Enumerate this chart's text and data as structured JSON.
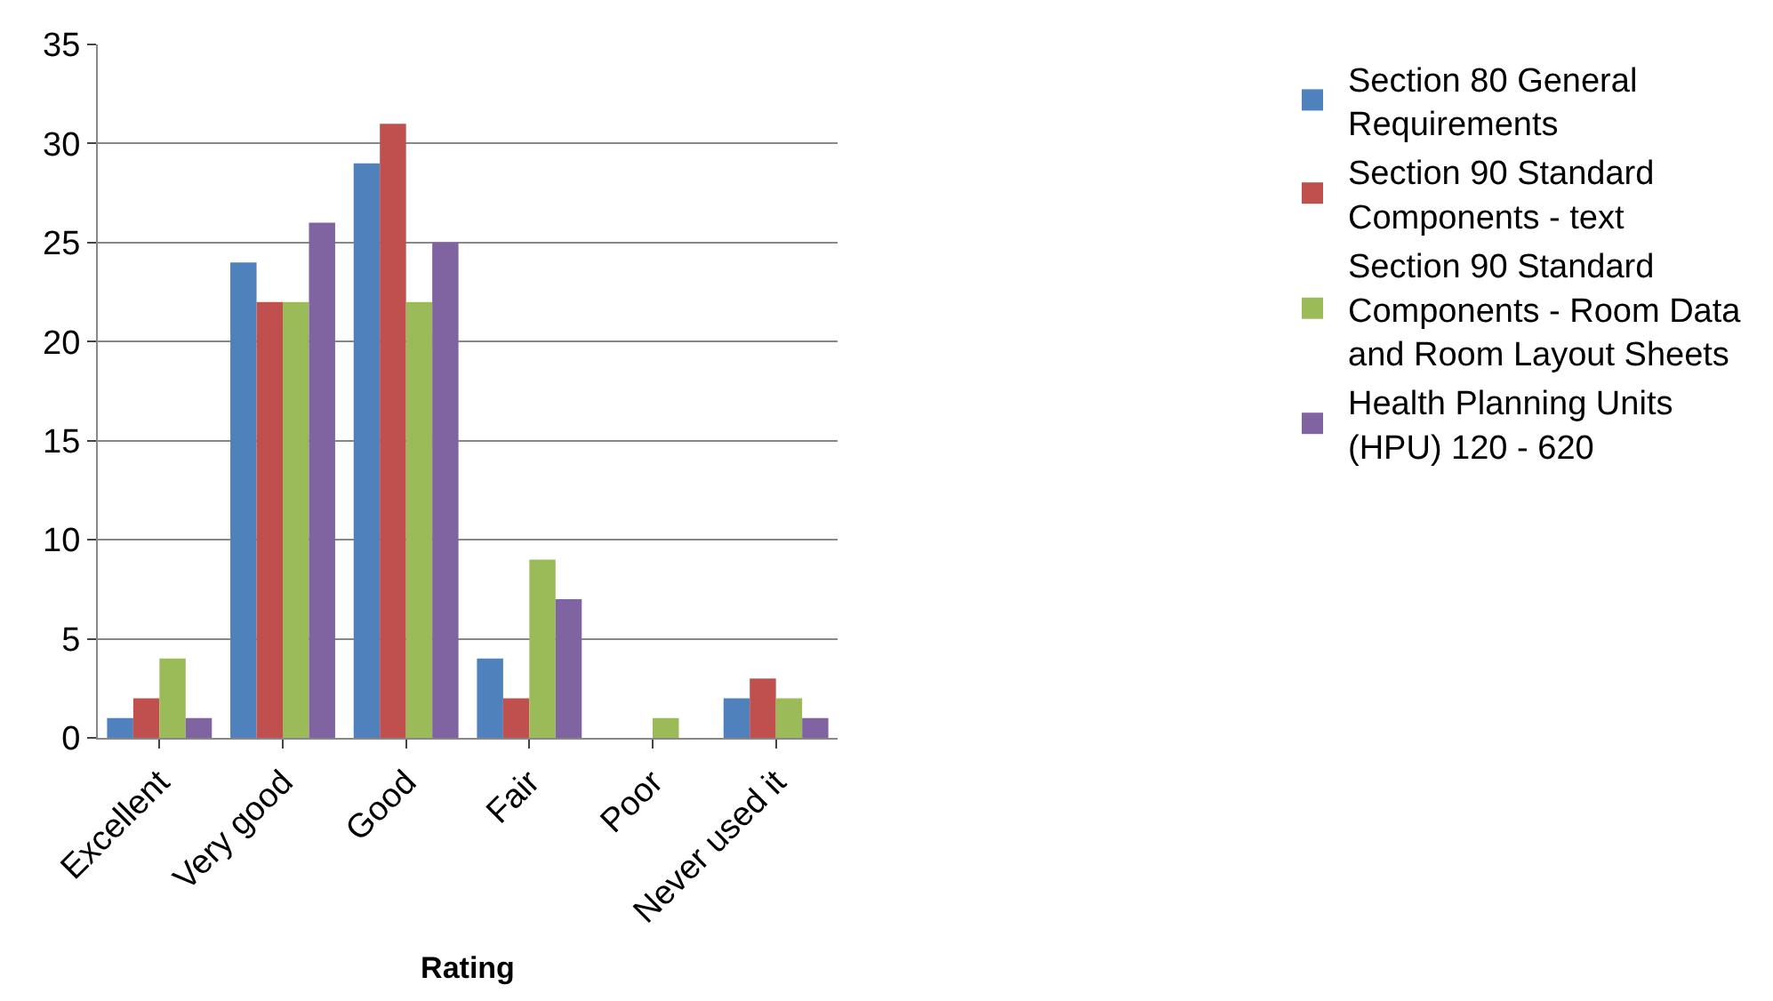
{
  "chart_data": {
    "type": "bar",
    "xlabel": "Rating",
    "categories": [
      "Excellent",
      "Very good",
      "Good",
      "Fair",
      "Poor",
      "Never used it"
    ],
    "series": [
      {
        "name": "Section 80 General Requirements",
        "color": "#4f81bd",
        "values": [
          1,
          24,
          29,
          4,
          0,
          2
        ]
      },
      {
        "name": "Section 90 Standard Components - text",
        "color": "#c0504d",
        "values": [
          2,
          22,
          31,
          2,
          0,
          3
        ]
      },
      {
        "name": "Section 90 Standard Components - Room Data and Room Layout Sheets",
        "color": "#9bbb59",
        "values": [
          4,
          22,
          22,
          9,
          1,
          2
        ]
      },
      {
        "name": "Health Planning Units (HPU) 120 - 620",
        "color": "#8064a2",
        "values": [
          1,
          26,
          25,
          7,
          0,
          1
        ]
      }
    ],
    "ylim": [
      0,
      35
    ],
    "yticks": [
      0,
      5,
      10,
      15,
      20,
      25,
      30,
      35
    ],
    "grid": "y",
    "legend": "right"
  }
}
